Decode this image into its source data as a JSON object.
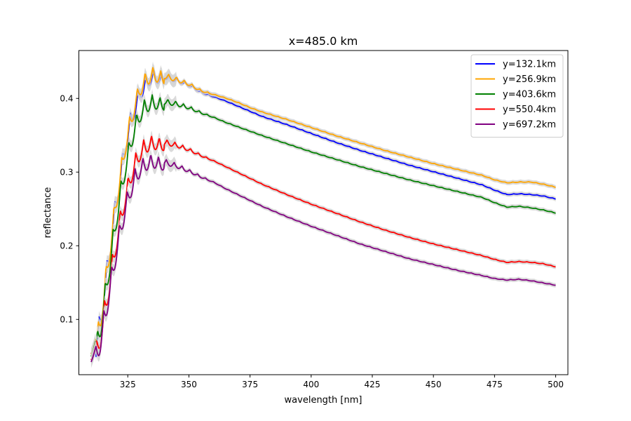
{
  "chart_data": {
    "type": "line",
    "title": "x=485.0 km",
    "xlabel": "wavelength [nm]",
    "ylabel": "reflectance",
    "xlim": [
      305,
      505
    ],
    "ylim": [
      0.025,
      0.465
    ],
    "xticks": [
      325,
      350,
      375,
      400,
      425,
      450,
      475,
      500
    ],
    "yticks": [
      0.1,
      0.2,
      0.3,
      0.4
    ],
    "grid": false,
    "legend_position": "top-right",
    "band_color": "#d3d3d3",
    "series": [
      {
        "name": "y=132.1km",
        "color": "#0000ff",
        "points": [
          [
            310,
            0.053
          ],
          [
            312,
            0.08
          ],
          [
            314,
            0.12
          ],
          [
            316,
            0.17
          ],
          [
            318,
            0.22
          ],
          [
            320,
            0.27
          ],
          [
            322,
            0.31
          ],
          [
            324,
            0.35
          ],
          [
            326,
            0.38
          ],
          [
            328,
            0.4
          ],
          [
            330,
            0.42
          ],
          [
            332,
            0.43
          ],
          [
            335,
            0.441
          ],
          [
            340,
            0.434
          ],
          [
            345,
            0.428
          ],
          [
            350,
            0.421
          ],
          [
            355,
            0.41
          ],
          [
            360,
            0.403
          ],
          [
            365,
            0.397
          ],
          [
            370,
            0.39
          ],
          [
            375,
            0.383
          ],
          [
            380,
            0.376
          ],
          [
            390,
            0.365
          ],
          [
            400,
            0.353
          ],
          [
            410,
            0.341
          ],
          [
            420,
            0.33
          ],
          [
            430,
            0.32
          ],
          [
            440,
            0.31
          ],
          [
            450,
            0.301
          ],
          [
            460,
            0.292
          ],
          [
            470,
            0.283
          ],
          [
            475,
            0.276
          ],
          [
            480,
            0.27
          ],
          [
            485,
            0.271
          ],
          [
            490,
            0.27
          ],
          [
            495,
            0.268
          ],
          [
            500,
            0.264
          ]
        ]
      },
      {
        "name": "y=256.9km",
        "color": "#ffa500",
        "points": [
          [
            310,
            0.054
          ],
          [
            312,
            0.08
          ],
          [
            314,
            0.12
          ],
          [
            316,
            0.17
          ],
          [
            318,
            0.22
          ],
          [
            320,
            0.27
          ],
          [
            322,
            0.31
          ],
          [
            324,
            0.35
          ],
          [
            326,
            0.38
          ],
          [
            328,
            0.405
          ],
          [
            330,
            0.425
          ],
          [
            332,
            0.435
          ],
          [
            335,
            0.443
          ],
          [
            340,
            0.435
          ],
          [
            345,
            0.429
          ],
          [
            350,
            0.422
          ],
          [
            355,
            0.412
          ],
          [
            360,
            0.406
          ],
          [
            365,
            0.401
          ],
          [
            370,
            0.395
          ],
          [
            375,
            0.388
          ],
          [
            380,
            0.382
          ],
          [
            390,
            0.372
          ],
          [
            400,
            0.361
          ],
          [
            410,
            0.35
          ],
          [
            420,
            0.34
          ],
          [
            430,
            0.33
          ],
          [
            440,
            0.321
          ],
          [
            450,
            0.312
          ],
          [
            460,
            0.304
          ],
          [
            470,
            0.296
          ],
          [
            475,
            0.29
          ],
          [
            480,
            0.286
          ],
          [
            485,
            0.287
          ],
          [
            490,
            0.287
          ],
          [
            495,
            0.284
          ],
          [
            500,
            0.28
          ]
        ]
      },
      {
        "name": "y=403.6km",
        "color": "#008000",
        "points": [
          [
            310,
            0.052
          ],
          [
            312,
            0.076
          ],
          [
            314,
            0.11
          ],
          [
            316,
            0.155
          ],
          [
            318,
            0.2
          ],
          [
            320,
            0.245
          ],
          [
            322,
            0.285
          ],
          [
            324,
            0.32
          ],
          [
            326,
            0.35
          ],
          [
            328,
            0.375
          ],
          [
            330,
            0.39
          ],
          [
            332,
            0.4
          ],
          [
            335,
            0.405
          ],
          [
            340,
            0.4
          ],
          [
            345,
            0.396
          ],
          [
            350,
            0.39
          ],
          [
            355,
            0.382
          ],
          [
            360,
            0.375
          ],
          [
            365,
            0.368
          ],
          [
            370,
            0.362
          ],
          [
            375,
            0.356
          ],
          [
            380,
            0.35
          ],
          [
            390,
            0.339
          ],
          [
            400,
            0.328
          ],
          [
            410,
            0.318
          ],
          [
            420,
            0.308
          ],
          [
            430,
            0.299
          ],
          [
            440,
            0.29
          ],
          [
            450,
            0.282
          ],
          [
            460,
            0.274
          ],
          [
            470,
            0.266
          ],
          [
            475,
            0.259
          ],
          [
            480,
            0.253
          ],
          [
            485,
            0.254
          ],
          [
            490,
            0.252
          ],
          [
            495,
            0.249
          ],
          [
            500,
            0.245
          ]
        ]
      },
      {
        "name": "y=550.4km",
        "color": "#ff0000",
        "points": [
          [
            310,
            0.048
          ],
          [
            312,
            0.068
          ],
          [
            314,
            0.098
          ],
          [
            316,
            0.135
          ],
          [
            318,
            0.175
          ],
          [
            320,
            0.215
          ],
          [
            322,
            0.25
          ],
          [
            324,
            0.28
          ],
          [
            326,
            0.305
          ],
          [
            328,
            0.325
          ],
          [
            330,
            0.338
          ],
          [
            332,
            0.346
          ],
          [
            335,
            0.35
          ],
          [
            340,
            0.345
          ],
          [
            345,
            0.34
          ],
          [
            350,
            0.333
          ],
          [
            355,
            0.324
          ],
          [
            360,
            0.316
          ],
          [
            365,
            0.308
          ],
          [
            370,
            0.3
          ],
          [
            375,
            0.292
          ],
          [
            380,
            0.284
          ],
          [
            390,
            0.27
          ],
          [
            400,
            0.257
          ],
          [
            410,
            0.245
          ],
          [
            420,
            0.233
          ],
          [
            430,
            0.222
          ],
          [
            440,
            0.212
          ],
          [
            450,
            0.203
          ],
          [
            460,
            0.195
          ],
          [
            470,
            0.187
          ],
          [
            475,
            0.182
          ],
          [
            480,
            0.178
          ],
          [
            485,
            0.179
          ],
          [
            490,
            0.178
          ],
          [
            495,
            0.176
          ],
          [
            500,
            0.172
          ]
        ]
      },
      {
        "name": "y=697.2km",
        "color": "#800080",
        "points": [
          [
            310,
            0.046
          ],
          [
            312,
            0.064
          ],
          [
            314,
            0.092
          ],
          [
            316,
            0.127
          ],
          [
            318,
            0.165
          ],
          [
            320,
            0.202
          ],
          [
            322,
            0.236
          ],
          [
            324,
            0.265
          ],
          [
            326,
            0.288
          ],
          [
            328,
            0.305
          ],
          [
            330,
            0.316
          ],
          [
            332,
            0.322
          ],
          [
            335,
            0.325
          ],
          [
            340,
            0.318
          ],
          [
            345,
            0.312
          ],
          [
            350,
            0.304
          ],
          [
            355,
            0.295
          ],
          [
            360,
            0.287
          ],
          [
            365,
            0.278
          ],
          [
            370,
            0.27
          ],
          [
            375,
            0.262
          ],
          [
            380,
            0.254
          ],
          [
            390,
            0.24
          ],
          [
            400,
            0.227
          ],
          [
            410,
            0.215
          ],
          [
            420,
            0.203
          ],
          [
            430,
            0.193
          ],
          [
            440,
            0.183
          ],
          [
            450,
            0.175
          ],
          [
            460,
            0.167
          ],
          [
            470,
            0.16
          ],
          [
            475,
            0.156
          ],
          [
            480,
            0.154
          ],
          [
            485,
            0.155
          ],
          [
            490,
            0.153
          ],
          [
            495,
            0.15
          ],
          [
            500,
            0.147
          ]
        ]
      }
    ]
  }
}
